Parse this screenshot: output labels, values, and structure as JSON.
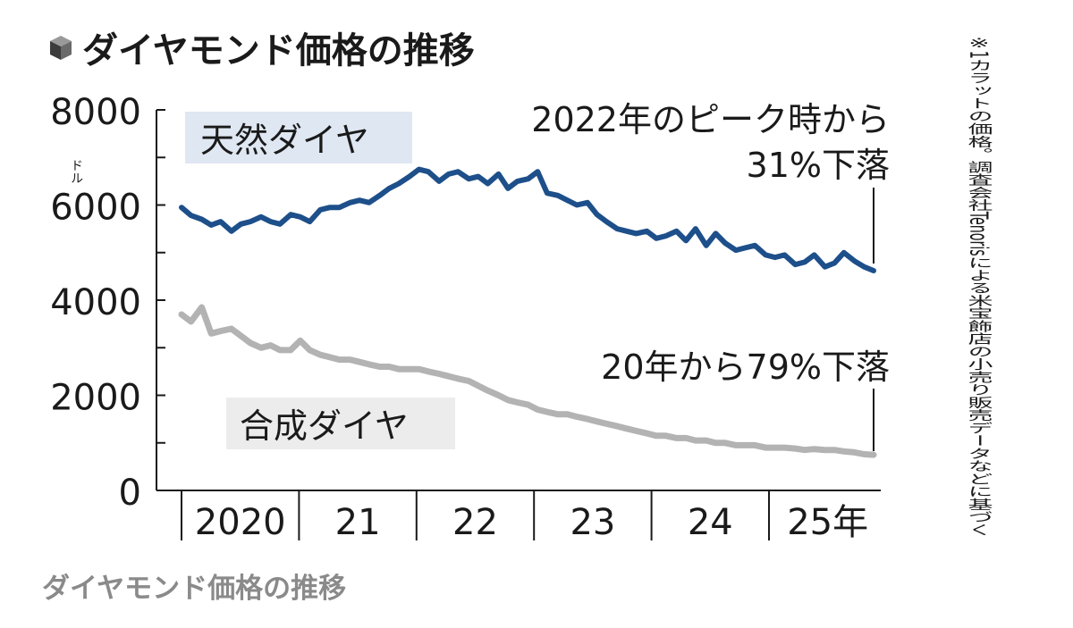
{
  "caption": "ダイヤモンド価格の推移",
  "chart_data": {
    "type": "line",
    "title": "ダイヤモンド価格の推移",
    "unit_label": "ドル",
    "yticks": [
      "8000",
      "6000",
      "4000",
      "2000",
      "0"
    ],
    "ylim": [
      0,
      8000
    ],
    "x_ticks": [
      "2020",
      "21",
      "22",
      "23",
      "24",
      "25年"
    ],
    "xlim": [
      2020.0,
      2025.83
    ],
    "note": "※1カラットの価格。調査会社Tenorisによる米宝飾店の小売り販売データなどに基づく",
    "series": [
      {
        "name": "天然ダイヤ",
        "color": "#1d4f8a",
        "label_bg": "#dfe7f3",
        "annotation": [
          "2022年のピーク時から",
          "31%下落"
        ],
        "x": [
          2020.0,
          2020.08,
          2020.17,
          2020.25,
          2020.33,
          2020.42,
          2020.5,
          2020.58,
          2020.67,
          2020.75,
          2020.83,
          2020.92,
          2021.0,
          2021.08,
          2021.17,
          2021.25,
          2021.33,
          2021.42,
          2021.5,
          2021.58,
          2021.67,
          2021.75,
          2021.83,
          2021.92,
          2022.0,
          2022.08,
          2022.17,
          2022.25,
          2022.33,
          2022.42,
          2022.5,
          2022.58,
          2022.67,
          2022.75,
          2022.83,
          2022.92,
          2023.0,
          2023.08,
          2023.17,
          2023.25,
          2023.33,
          2023.42,
          2023.5,
          2023.58,
          2023.67,
          2023.75,
          2023.83,
          2023.92,
          2024.0,
          2024.08,
          2024.17,
          2024.25,
          2024.33,
          2024.42,
          2024.5,
          2024.58,
          2024.67,
          2024.75,
          2024.83,
          2024.92,
          2025.0,
          2025.08,
          2025.17,
          2025.25,
          2025.33,
          2025.42,
          2025.5,
          2025.58,
          2025.67,
          2025.75,
          2025.83
        ],
        "values": [
          5950,
          5780,
          5700,
          5580,
          5650,
          5450,
          5600,
          5650,
          5750,
          5650,
          5600,
          5800,
          5750,
          5650,
          5900,
          5950,
          5950,
          6050,
          6100,
          6050,
          6200,
          6350,
          6450,
          6600,
          6750,
          6700,
          6500,
          6650,
          6700,
          6550,
          6600,
          6450,
          6650,
          6350,
          6500,
          6550,
          6700,
          6250,
          6200,
          6100,
          6000,
          6050,
          5800,
          5650,
          5500,
          5450,
          5400,
          5450,
          5300,
          5350,
          5450,
          5250,
          5500,
          5150,
          5400,
          5200,
          5050,
          5100,
          5150,
          4950,
          4900,
          4950,
          4750,
          4800,
          4950,
          4700,
          4780,
          5000,
          4820,
          4700,
          4620
        ]
      },
      {
        "name": "合成ダイヤ",
        "color": "#b3b3b3",
        "label_bg": "#ececec",
        "annotation": [
          "20年から79%下落"
        ],
        "x": [
          2020.0,
          2020.08,
          2020.17,
          2020.25,
          2020.33,
          2020.42,
          2020.5,
          2020.58,
          2020.67,
          2020.75,
          2020.83,
          2020.92,
          2021.0,
          2021.08,
          2021.17,
          2021.25,
          2021.33,
          2021.42,
          2021.5,
          2021.58,
          2021.67,
          2021.75,
          2021.83,
          2021.92,
          2022.0,
          2022.08,
          2022.17,
          2022.25,
          2022.33,
          2022.42,
          2022.5,
          2022.58,
          2022.67,
          2022.75,
          2022.83,
          2022.92,
          2023.0,
          2023.08,
          2023.17,
          2023.25,
          2023.33,
          2023.42,
          2023.5,
          2023.58,
          2023.67,
          2023.75,
          2023.83,
          2023.92,
          2024.0,
          2024.08,
          2024.17,
          2024.25,
          2024.33,
          2024.42,
          2024.5,
          2024.58,
          2024.67,
          2024.75,
          2024.83,
          2024.92,
          2025.0,
          2025.08,
          2025.17,
          2025.25,
          2025.33,
          2025.42,
          2025.5,
          2025.58,
          2025.67,
          2025.75,
          2025.83
        ],
        "values": [
          3700,
          3550,
          3850,
          3300,
          3350,
          3400,
          3250,
          3100,
          3000,
          3050,
          2950,
          2950,
          3150,
          2950,
          2850,
          2800,
          2750,
          2750,
          2700,
          2650,
          2600,
          2600,
          2550,
          2550,
          2550,
          2500,
          2450,
          2400,
          2350,
          2300,
          2200,
          2100,
          2000,
          1900,
          1850,
          1800,
          1700,
          1650,
          1600,
          1600,
          1550,
          1500,
          1450,
          1400,
          1350,
          1300,
          1250,
          1200,
          1150,
          1150,
          1100,
          1100,
          1050,
          1050,
          1000,
          1000,
          950,
          950,
          950,
          900,
          900,
          900,
          880,
          850,
          870,
          850,
          850,
          820,
          800,
          760,
          750
        ]
      }
    ]
  }
}
